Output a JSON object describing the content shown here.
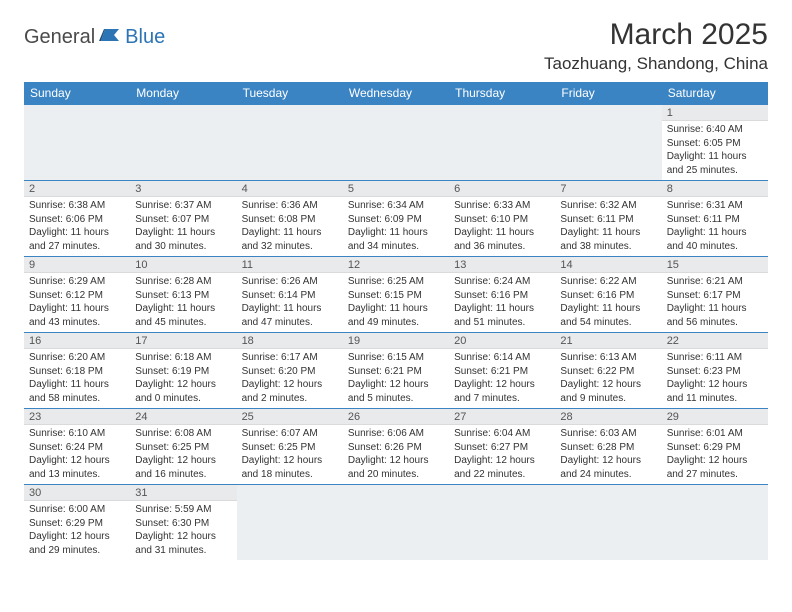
{
  "logo": {
    "text1": "General",
    "text2": "Blue"
  },
  "title": "March 2025",
  "location": "Taozhuang, Shandong, China",
  "colors": {
    "header_bg": "#3b84c4",
    "header_text": "#ffffff",
    "daynum_bg": "#e8eaec",
    "empty_bg": "#eceff1",
    "row_border": "#3b84c4",
    "body_text": "#333333",
    "logo_gray": "#4a4a4a",
    "logo_blue": "#2d74b5"
  },
  "day_names": [
    "Sunday",
    "Monday",
    "Tuesday",
    "Wednesday",
    "Thursday",
    "Friday",
    "Saturday"
  ],
  "weeks": [
    [
      null,
      null,
      null,
      null,
      null,
      null,
      {
        "n": "1",
        "sr": "6:40 AM",
        "ss": "6:05 PM",
        "dh": "11",
        "dm": "25"
      }
    ],
    [
      {
        "n": "2",
        "sr": "6:38 AM",
        "ss": "6:06 PM",
        "dh": "11",
        "dm": "27"
      },
      {
        "n": "3",
        "sr": "6:37 AM",
        "ss": "6:07 PM",
        "dh": "11",
        "dm": "30"
      },
      {
        "n": "4",
        "sr": "6:36 AM",
        "ss": "6:08 PM",
        "dh": "11",
        "dm": "32"
      },
      {
        "n": "5",
        "sr": "6:34 AM",
        "ss": "6:09 PM",
        "dh": "11",
        "dm": "34"
      },
      {
        "n": "6",
        "sr": "6:33 AM",
        "ss": "6:10 PM",
        "dh": "11",
        "dm": "36"
      },
      {
        "n": "7",
        "sr": "6:32 AM",
        "ss": "6:11 PM",
        "dh": "11",
        "dm": "38"
      },
      {
        "n": "8",
        "sr": "6:31 AM",
        "ss": "6:11 PM",
        "dh": "11",
        "dm": "40"
      }
    ],
    [
      {
        "n": "9",
        "sr": "6:29 AM",
        "ss": "6:12 PM",
        "dh": "11",
        "dm": "43"
      },
      {
        "n": "10",
        "sr": "6:28 AM",
        "ss": "6:13 PM",
        "dh": "11",
        "dm": "45"
      },
      {
        "n": "11",
        "sr": "6:26 AM",
        "ss": "6:14 PM",
        "dh": "11",
        "dm": "47"
      },
      {
        "n": "12",
        "sr": "6:25 AM",
        "ss": "6:15 PM",
        "dh": "11",
        "dm": "49"
      },
      {
        "n": "13",
        "sr": "6:24 AM",
        "ss": "6:16 PM",
        "dh": "11",
        "dm": "51"
      },
      {
        "n": "14",
        "sr": "6:22 AM",
        "ss": "6:16 PM",
        "dh": "11",
        "dm": "54"
      },
      {
        "n": "15",
        "sr": "6:21 AM",
        "ss": "6:17 PM",
        "dh": "11",
        "dm": "56"
      }
    ],
    [
      {
        "n": "16",
        "sr": "6:20 AM",
        "ss": "6:18 PM",
        "dh": "11",
        "dm": "58"
      },
      {
        "n": "17",
        "sr": "6:18 AM",
        "ss": "6:19 PM",
        "dh": "12",
        "dm": "0"
      },
      {
        "n": "18",
        "sr": "6:17 AM",
        "ss": "6:20 PM",
        "dh": "12",
        "dm": "2"
      },
      {
        "n": "19",
        "sr": "6:15 AM",
        "ss": "6:21 PM",
        "dh": "12",
        "dm": "5"
      },
      {
        "n": "20",
        "sr": "6:14 AM",
        "ss": "6:21 PM",
        "dh": "12",
        "dm": "7"
      },
      {
        "n": "21",
        "sr": "6:13 AM",
        "ss": "6:22 PM",
        "dh": "12",
        "dm": "9"
      },
      {
        "n": "22",
        "sr": "6:11 AM",
        "ss": "6:23 PM",
        "dh": "12",
        "dm": "11"
      }
    ],
    [
      {
        "n": "23",
        "sr": "6:10 AM",
        "ss": "6:24 PM",
        "dh": "12",
        "dm": "13"
      },
      {
        "n": "24",
        "sr": "6:08 AM",
        "ss": "6:25 PM",
        "dh": "12",
        "dm": "16"
      },
      {
        "n": "25",
        "sr": "6:07 AM",
        "ss": "6:25 PM",
        "dh": "12",
        "dm": "18"
      },
      {
        "n": "26",
        "sr": "6:06 AM",
        "ss": "6:26 PM",
        "dh": "12",
        "dm": "20"
      },
      {
        "n": "27",
        "sr": "6:04 AM",
        "ss": "6:27 PM",
        "dh": "12",
        "dm": "22"
      },
      {
        "n": "28",
        "sr": "6:03 AM",
        "ss": "6:28 PM",
        "dh": "12",
        "dm": "24"
      },
      {
        "n": "29",
        "sr": "6:01 AM",
        "ss": "6:29 PM",
        "dh": "12",
        "dm": "27"
      }
    ],
    [
      {
        "n": "30",
        "sr": "6:00 AM",
        "ss": "6:29 PM",
        "dh": "12",
        "dm": "29"
      },
      {
        "n": "31",
        "sr": "5:59 AM",
        "ss": "6:30 PM",
        "dh": "12",
        "dm": "31"
      },
      null,
      null,
      null,
      null,
      null
    ]
  ]
}
